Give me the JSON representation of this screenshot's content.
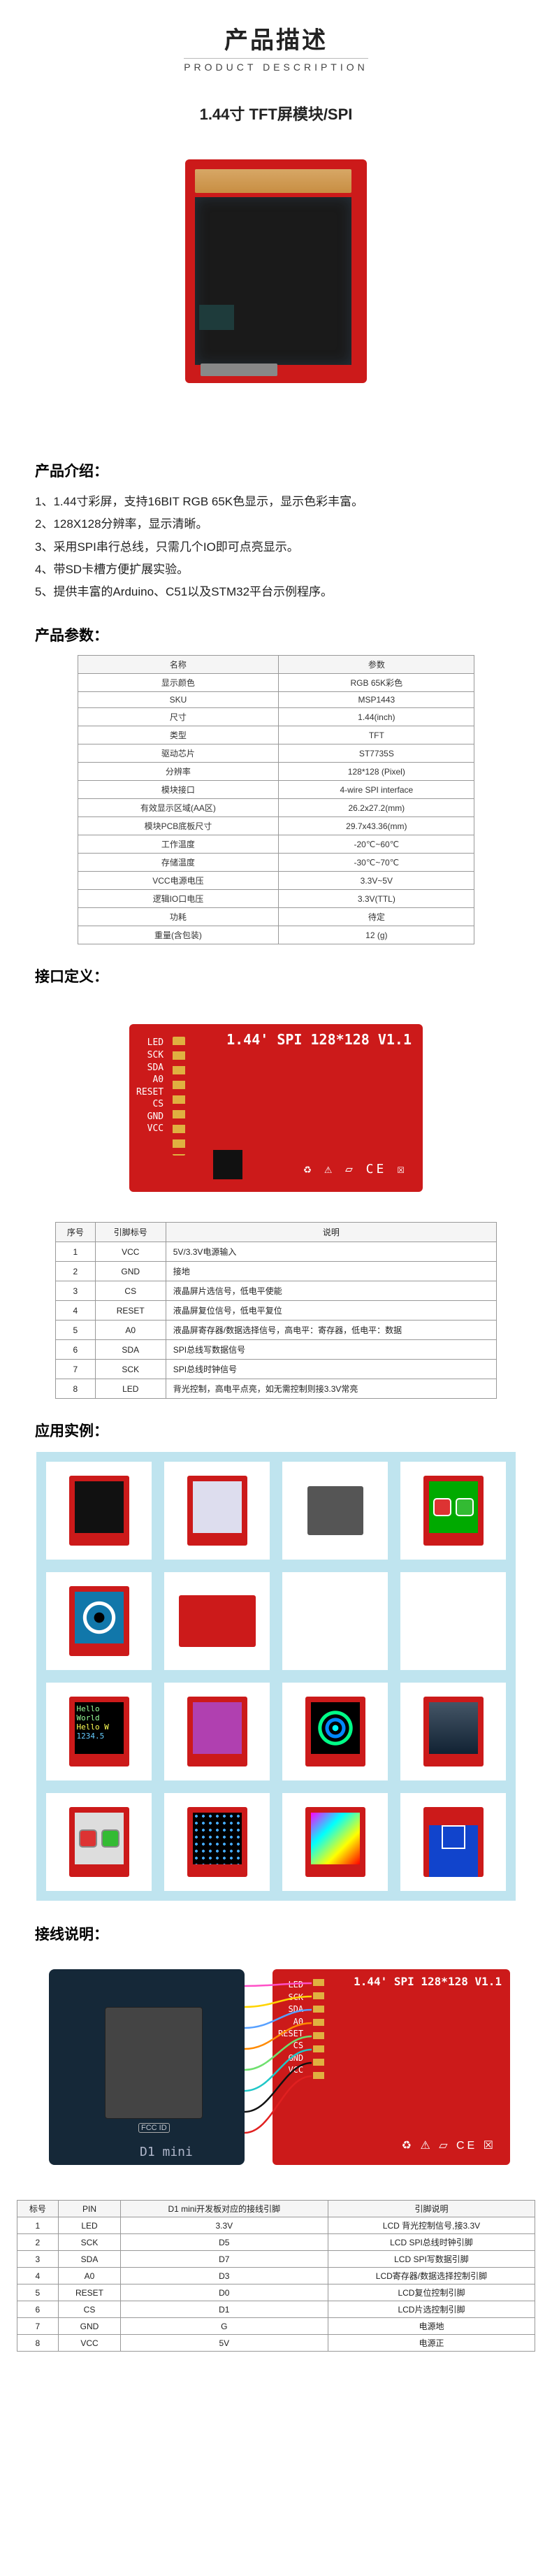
{
  "header": {
    "title_cn": "产品描述",
    "title_en": "PRODUCT DESCRIPTION",
    "subtitle": "1.44寸 TFT屏模块/SPI"
  },
  "intro": {
    "title": "产品介绍：",
    "items": [
      "1、1.44寸彩屏，支持16BIT RGB 65K色显示，显示色彩丰富。",
      "2、128X128分辨率，显示清晰。",
      "3、采用SPI串行总线，只需几个IO即可点亮显示。",
      "4、带SD卡槽方便扩展实验。",
      "5、提供丰富的Arduino、C51以及STM32平台示例程序。"
    ]
  },
  "specs": {
    "title": "产品参数：",
    "head": [
      "名称",
      "参数"
    ],
    "rows": [
      [
        "显示颜色",
        "RGB 65K彩色"
      ],
      [
        "SKU",
        "MSP1443"
      ],
      [
        "尺寸",
        "1.44(inch)"
      ],
      [
        "类型",
        "TFT"
      ],
      [
        "驱动芯片",
        "ST7735S"
      ],
      [
        "分辨率",
        "128*128 (Pixel)"
      ],
      [
        "模块接口",
        "4-wire SPI interface"
      ],
      [
        "有效显示区域(AA区)",
        "26.2x27.2(mm)"
      ],
      [
        "模块PCB底板尺寸",
        "29.7x43.36(mm)"
      ],
      [
        "工作温度",
        "-20℃~60℃"
      ],
      [
        "存储温度",
        "-30℃~70℃"
      ],
      [
        "VCC电源电压",
        "3.3V~5V"
      ],
      [
        "逻辑IO口电压",
        "3.3V(TTL)"
      ],
      [
        "功耗",
        "待定"
      ],
      [
        "重量(含包装)",
        "12 (g)"
      ]
    ]
  },
  "pins": {
    "title": "接口定义：",
    "silk_title": "1.44' SPI 128*128 V1.1",
    "silk_labels": [
      "LED",
      "SCK",
      "SDA",
      "A0",
      "RESET",
      "CS",
      "GND",
      "VCC"
    ],
    "marks": "♻ ⚠ ▱ CE ☒",
    "head": [
      "序号",
      "引脚标号",
      "说明"
    ],
    "rows": [
      [
        "1",
        "VCC",
        "5V/3.3V电源输入"
      ],
      [
        "2",
        "GND",
        "接地"
      ],
      [
        "3",
        "CS",
        "液晶屏片选信号，低电平使能"
      ],
      [
        "4",
        "RESET",
        "液晶屏复位信号，低电平复位"
      ],
      [
        "5",
        "A0",
        "液晶屏寄存器/数据选择信号，高电平：寄存器，低电平：数据"
      ],
      [
        "6",
        "SDA",
        "SPI总线写数据信号"
      ],
      [
        "7",
        "SCK",
        "SPI总线时钟信号"
      ],
      [
        "8",
        "LED",
        "背光控制，高电平点亮，如无需控制则接3.3V常亮"
      ]
    ]
  },
  "examples": {
    "title": "应用实例：",
    "cells": [
      {
        "type": "mini",
        "bg": "#111"
      },
      {
        "type": "mini",
        "bg": "#dde"
      },
      {
        "type": "wires"
      },
      {
        "type": "mini",
        "bg": "#0a0",
        "extra": "buttons",
        "variant": "red"
      },
      {
        "type": "mini",
        "bg": "#17a",
        "extra": "eye"
      },
      {
        "type": "pcbback"
      },
      {
        "type": "empty"
      },
      {
        "type": "empty"
      },
      {
        "type": "mini",
        "bg": "#000",
        "extra": "text",
        "text": "Hello World\\nHello W\\n1234.5"
      },
      {
        "type": "mini",
        "bg": "#b040b0"
      },
      {
        "type": "mini",
        "bg": "#000",
        "extra": "rings"
      },
      {
        "type": "mini",
        "bg": "#111",
        "extra": "photo"
      },
      {
        "type": "mini",
        "bg": "#ddd",
        "extra": "buttons",
        "variant": "green"
      },
      {
        "type": "mini",
        "bg": "#111",
        "extra": "dots"
      },
      {
        "type": "mini",
        "bg": "#000",
        "extra": "gradient"
      },
      {
        "type": "mini",
        "bg": "#14c",
        "extra": "rect"
      }
    ]
  },
  "wiring": {
    "title": "接线说明：",
    "mcu_label": "D1 mini",
    "colors": {
      "LED": "#ff4fc7",
      "SCK": "#ffd400",
      "SDA": "#57a0ff",
      "A0": "#ff8a00",
      "RESET": "#6fe06f",
      "CS": "#20c7c7",
      "GND": "#111",
      "VCC": "#e02020"
    },
    "head": [
      "标号",
      "PIN",
      "D1 mini开发板对应的接线引脚",
      "引脚说明"
    ],
    "rows": [
      [
        "1",
        "LED",
        "3.3V",
        "LCD 背光控制信号,接3.3V"
      ],
      [
        "2",
        "SCK",
        "D5",
        "LCD SPI总线时钟引脚"
      ],
      [
        "3",
        "SDA",
        "D7",
        "LCD SPI写数据引脚"
      ],
      [
        "4",
        "A0",
        "D3",
        "LCD寄存器/数据选择控制引脚"
      ],
      [
        "5",
        "RESET",
        "D0",
        "LCD复位控制引脚"
      ],
      [
        "6",
        "CS",
        "D1",
        "LCD片选控制引脚"
      ],
      [
        "7",
        "GND",
        "G",
        "电源地"
      ],
      [
        "8",
        "VCC",
        "5V",
        "电源正"
      ]
    ]
  }
}
